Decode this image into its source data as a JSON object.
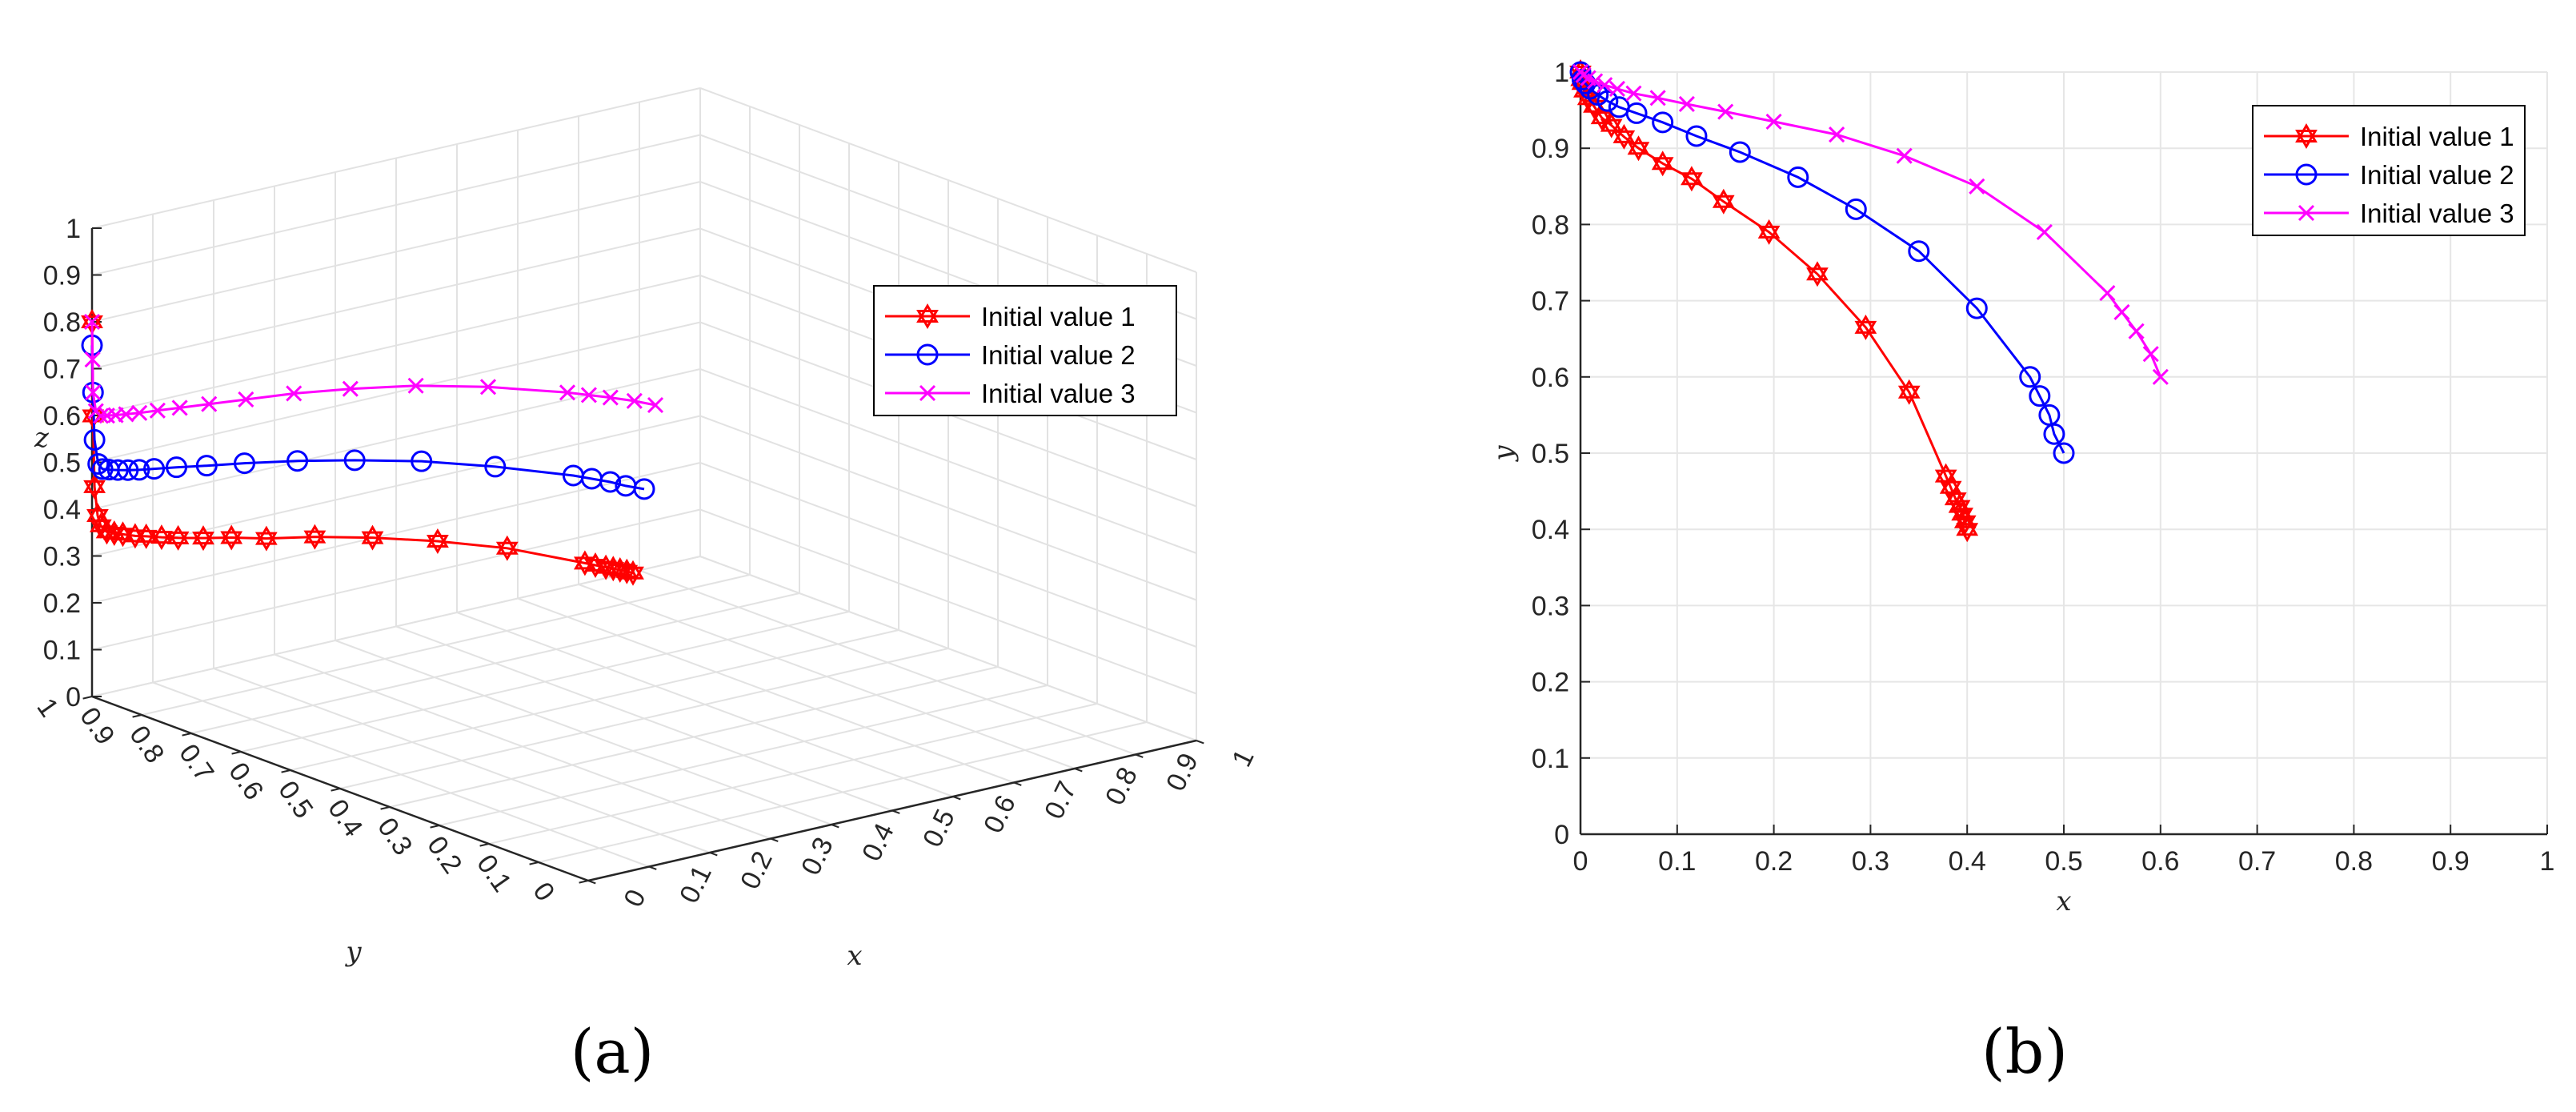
{
  "chart_data": [
    {
      "panel": "(a)",
      "type": "line",
      "projection": "3d",
      "xlabel": "x",
      "ylabel": "y",
      "zlabel": "z",
      "xlim": [
        0,
        1
      ],
      "ylim": [
        0,
        1
      ],
      "zlim": [
        0,
        1
      ],
      "xticks": [
        "0",
        "0.1",
        "0.2",
        "0.3",
        "0.4",
        "0.5",
        "0.6",
        "0.7",
        "0.8",
        "0.9",
        "1"
      ],
      "yticks": [
        "0",
        "0.1",
        "0.2",
        "0.3",
        "0.4",
        "0.5",
        "0.6",
        "0.7",
        "0.8",
        "0.9",
        "1"
      ],
      "zticks": [
        "0",
        "0.1",
        "0.2",
        "0.3",
        "0.4",
        "0.5",
        "0.6",
        "0.7",
        "0.8",
        "0.9",
        "1"
      ],
      "grid": true,
      "legend_position": "right",
      "series": [
        {
          "name": "Initial value 1",
          "color": "#ff0000",
          "marker": "hexagram",
          "x": [
            0.4,
            0.398,
            0.395,
            0.392,
            0.388,
            0.383,
            0.378,
            0.34,
            0.295,
            0.245,
            0.195,
            0.148,
            0.115,
            0.085,
            0.06,
            0.045,
            0.032,
            0.022,
            0.014,
            0.008,
            0.004,
            0.002,
            0.001,
            0,
            0,
            0
          ],
          "y": [
            0.4,
            0.41,
            0.42,
            0.43,
            0.44,
            0.455,
            0.47,
            0.58,
            0.665,
            0.735,
            0.79,
            0.83,
            0.86,
            0.88,
            0.9,
            0.915,
            0.93,
            0.94,
            0.955,
            0.965,
            0.975,
            0.985,
            0.99,
            0.995,
            0.998,
            1
          ],
          "z": [
            0.38,
            0.38,
            0.38,
            0.38,
            0.38,
            0.38,
            0.38,
            0.38,
            0.375,
            0.37,
            0.365,
            0.36,
            0.36,
            0.36,
            0.36,
            0.36,
            0.36,
            0.36,
            0.36,
            0.36,
            0.36,
            0.37,
            0.39,
            0.45,
            0.6,
            0.8
          ]
        },
        {
          "name": "Initial value 2",
          "color": "#0000ff",
          "marker": "circle",
          "x": [
            0.5,
            0.49,
            0.485,
            0.475,
            0.465,
            0.41,
            0.35,
            0.285,
            0.225,
            0.165,
            0.12,
            0.085,
            0.058,
            0.04,
            0.028,
            0.018,
            0.01,
            0.005,
            0.002,
            0,
            0,
            0
          ],
          "y": [
            0.5,
            0.525,
            0.55,
            0.575,
            0.6,
            0.69,
            0.765,
            0.82,
            0.862,
            0.895,
            0.916,
            0.934,
            0.946,
            0.954,
            0.962,
            0.97,
            0.978,
            0.985,
            0.99,
            0.995,
            0.998,
            1
          ],
          "z": [
            0.49,
            0.49,
            0.49,
            0.49,
            0.49,
            0.49,
            0.49,
            0.49,
            0.49,
            0.49,
            0.49,
            0.49,
            0.49,
            0.49,
            0.49,
            0.49,
            0.49,
            0.49,
            0.5,
            0.55,
            0.65,
            0.75
          ]
        },
        {
          "name": "Initial value 3",
          "color": "#ff00ff",
          "marker": "x",
          "x": [
            0.6,
            0.59,
            0.575,
            0.56,
            0.545,
            0.48,
            0.41,
            0.335,
            0.265,
            0.2,
            0.15,
            0.11,
            0.08,
            0.055,
            0.038,
            0.025,
            0.015,
            0.008,
            0.003,
            0,
            0,
            0
          ],
          "y": [
            0.6,
            0.63,
            0.66,
            0.685,
            0.71,
            0.79,
            0.85,
            0.89,
            0.918,
            0.935,
            0.948,
            0.958,
            0.966,
            0.972,
            0.978,
            0.983,
            0.988,
            0.992,
            0.996,
            0.998,
            0.999,
            1
          ],
          "z": [
            0.6,
            0.6,
            0.6,
            0.6,
            0.6,
            0.6,
            0.6,
            0.6,
            0.6,
            0.6,
            0.6,
            0.6,
            0.6,
            0.6,
            0.6,
            0.6,
            0.6,
            0.6,
            0.61,
            0.65,
            0.72,
            0.8
          ]
        }
      ]
    },
    {
      "panel": "(b)",
      "type": "line",
      "xlabel": "x",
      "ylabel": "y",
      "xlim": [
        0,
        1
      ],
      "ylim": [
        0,
        1
      ],
      "xticks": [
        "0",
        "0.1",
        "0.2",
        "0.3",
        "0.4",
        "0.5",
        "0.6",
        "0.7",
        "0.8",
        "0.9",
        "1"
      ],
      "yticks": [
        "0",
        "0.1",
        "0.2",
        "0.3",
        "0.4",
        "0.5",
        "0.6",
        "0.7",
        "0.8",
        "0.9",
        "1"
      ],
      "grid": true,
      "legend_position": "top-right",
      "series": [
        {
          "name": "Initial value 1",
          "color": "#ff0000",
          "marker": "hexagram",
          "x": [
            0.4,
            0.398,
            0.395,
            0.392,
            0.388,
            0.383,
            0.378,
            0.34,
            0.295,
            0.245,
            0.195,
            0.148,
            0.115,
            0.085,
            0.06,
            0.045,
            0.032,
            0.022,
            0.014,
            0.008,
            0.004,
            0.002,
            0.001,
            0
          ],
          "y": [
            0.4,
            0.41,
            0.42,
            0.43,
            0.44,
            0.455,
            0.47,
            0.58,
            0.665,
            0.735,
            0.79,
            0.83,
            0.86,
            0.88,
            0.9,
            0.915,
            0.93,
            0.94,
            0.955,
            0.965,
            0.975,
            0.985,
            0.99,
            1
          ]
        },
        {
          "name": "Initial value 2",
          "color": "#0000ff",
          "marker": "circle",
          "x": [
            0.5,
            0.49,
            0.485,
            0.475,
            0.465,
            0.41,
            0.35,
            0.285,
            0.225,
            0.165,
            0.12,
            0.085,
            0.058,
            0.04,
            0.028,
            0.018,
            0.01,
            0.005,
            0.002,
            0
          ],
          "y": [
            0.5,
            0.525,
            0.55,
            0.575,
            0.6,
            0.69,
            0.765,
            0.82,
            0.862,
            0.895,
            0.916,
            0.934,
            0.946,
            0.954,
            0.962,
            0.97,
            0.978,
            0.985,
            0.99,
            1
          ]
        },
        {
          "name": "Initial value 3",
          "color": "#ff00ff",
          "marker": "x",
          "x": [
            0.6,
            0.59,
            0.575,
            0.56,
            0.545,
            0.48,
            0.41,
            0.335,
            0.265,
            0.2,
            0.15,
            0.11,
            0.08,
            0.055,
            0.038,
            0.025,
            0.015,
            0.008,
            0.003,
            0
          ],
          "y": [
            0.6,
            0.63,
            0.66,
            0.685,
            0.71,
            0.79,
            0.85,
            0.89,
            0.918,
            0.935,
            0.948,
            0.958,
            0.966,
            0.972,
            0.978,
            0.983,
            0.988,
            0.992,
            0.996,
            1
          ]
        }
      ]
    }
  ]
}
